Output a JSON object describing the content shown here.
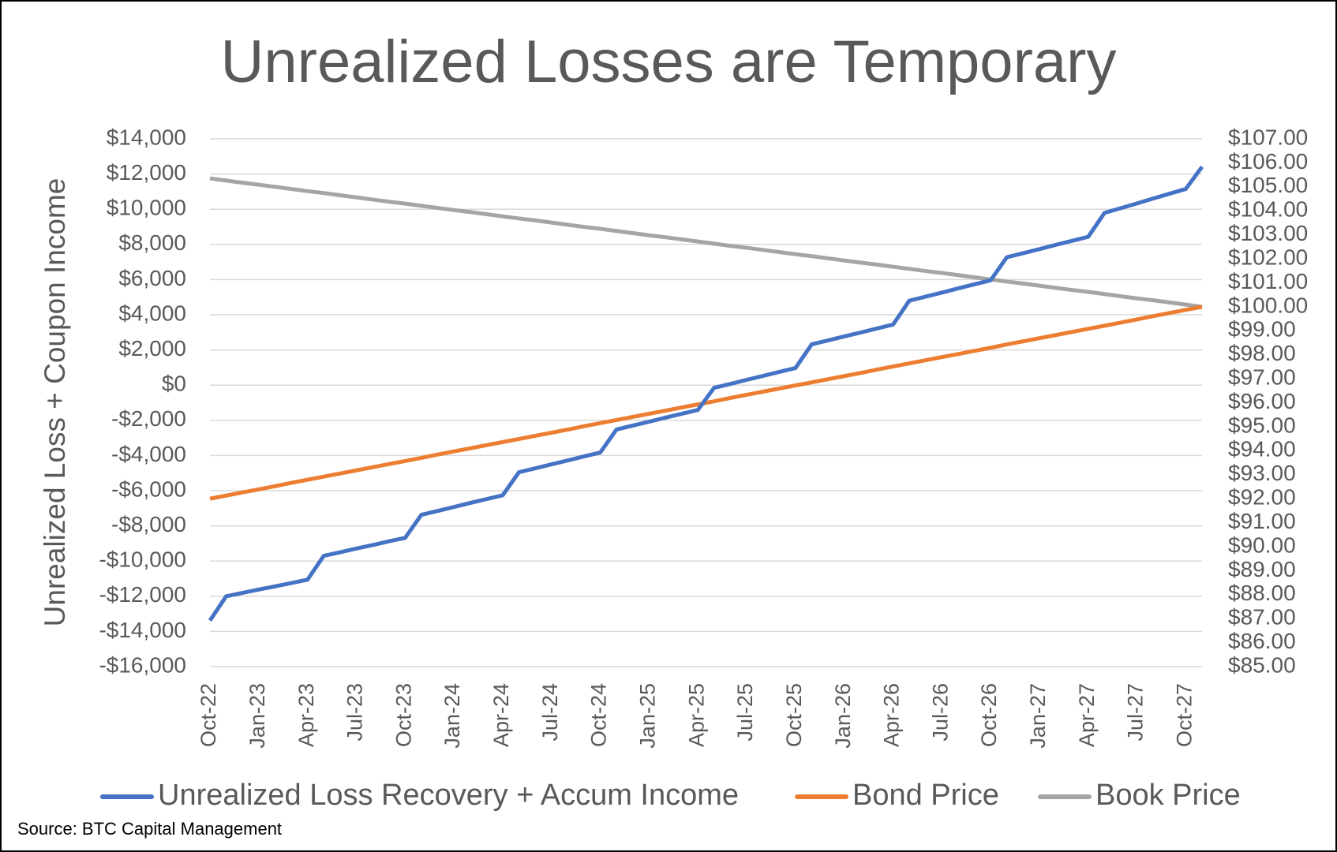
{
  "chart_data": {
    "type": "line",
    "title": "Unrealized Losses are Temporary",
    "y_label": "Unrealized Loss + Coupon Income",
    "source": "Source:  BTC Capital Management",
    "categories": [
      "Oct-22",
      null,
      null,
      "Jan-23",
      null,
      null,
      "Apr-23",
      null,
      null,
      "Jul-23",
      null,
      null,
      "Oct-23",
      null,
      null,
      "Jan-24",
      null,
      null,
      "Apr-24",
      null,
      null,
      "Jul-24",
      null,
      null,
      "Oct-24",
      null,
      null,
      "Jan-25",
      null,
      null,
      "Apr-25",
      null,
      null,
      "Jul-25",
      null,
      null,
      "Oct-25",
      null,
      null,
      "Jan-26",
      null,
      null,
      "Apr-26",
      null,
      null,
      "Jul-26",
      null,
      null,
      "Oct-26",
      null,
      null,
      "Jan-27",
      null,
      null,
      "Apr-27",
      null,
      null,
      "Jul-27",
      null,
      null,
      "Oct-27",
      null
    ],
    "ylim": [
      -16000,
      14000
    ],
    "yticks": [
      {
        "value": -16000,
        "label": "-$16,000"
      },
      {
        "value": -14000,
        "label": "-$14,000"
      },
      {
        "value": -12000,
        "label": "-$12,000"
      },
      {
        "value": -10000,
        "label": "-$10,000"
      },
      {
        "value": -8000,
        "label": "-$8,000"
      },
      {
        "value": -6000,
        "label": "-$6,000"
      },
      {
        "value": -4000,
        "label": "-$4,000"
      },
      {
        "value": -2000,
        "label": "-$2,000"
      },
      {
        "value": 0,
        "label": "$0"
      },
      {
        "value": 2000,
        "label": "$2,000"
      },
      {
        "value": 4000,
        "label": "$4,000"
      },
      {
        "value": 6000,
        "label": "$6,000"
      },
      {
        "value": 8000,
        "label": "$8,000"
      },
      {
        "value": 10000,
        "label": "$10,000"
      },
      {
        "value": 12000,
        "label": "$12,000"
      },
      {
        "value": 14000,
        "label": "$14,000"
      }
    ],
    "y2lim": [
      85,
      107
    ],
    "y2ticks": [
      {
        "value": 85,
        "label": "$85.00"
      },
      {
        "value": 86,
        "label": "$86.00"
      },
      {
        "value": 87,
        "label": "$87.00"
      },
      {
        "value": 88,
        "label": "$88.00"
      },
      {
        "value": 89,
        "label": "$89.00"
      },
      {
        "value": 90,
        "label": "$90.00"
      },
      {
        "value": 91,
        "label": "$91.00"
      },
      {
        "value": 92,
        "label": "$92.00"
      },
      {
        "value": 93,
        "label": "$93.00"
      },
      {
        "value": 94,
        "label": "$94.00"
      },
      {
        "value": 95,
        "label": "$95.00"
      },
      {
        "value": 96,
        "label": "$96.00"
      },
      {
        "value": 97,
        "label": "$97.00"
      },
      {
        "value": 98,
        "label": "$98.00"
      },
      {
        "value": 99,
        "label": "$99.00"
      },
      {
        "value": 100,
        "label": "$100.00"
      },
      {
        "value": 101,
        "label": "$101.00"
      },
      {
        "value": 102,
        "label": "$102.00"
      },
      {
        "value": 103,
        "label": "$103.00"
      },
      {
        "value": 104,
        "label": "$104.00"
      },
      {
        "value": 105,
        "label": "$105.00"
      },
      {
        "value": 106,
        "label": "$106.00"
      },
      {
        "value": 107,
        "label": "$107.00"
      }
    ],
    "grid": true,
    "legend": "bottom",
    "series": [
      {
        "name": "Unrealized Loss Recovery + Accum Income",
        "color": "#4472c4",
        "axis": "y",
        "values": [
          -13380,
          -12000,
          -11810,
          -11620,
          -11440,
          -11250,
          -11060,
          -9700,
          -9500,
          -9290,
          -9090,
          -8880,
          -8680,
          -7370,
          -7150,
          -6930,
          -6700,
          -6480,
          -6260,
          -4950,
          -4730,
          -4500,
          -4280,
          -4050,
          -3830,
          -2520,
          -2300,
          -2080,
          -1850,
          -1630,
          -1410,
          -150,
          70,
          300,
          520,
          750,
          970,
          2320,
          2540,
          2770,
          2990,
          3220,
          3440,
          4800,
          5030,
          5260,
          5500,
          5730,
          5960,
          7270,
          7500,
          7730,
          7970,
          8200,
          8430,
          9790,
          10060,
          10330,
          10610,
          10880,
          11150,
          12410
        ]
      },
      {
        "name": "Bond Price",
        "color": "#ed7d31",
        "axis": "y2",
        "values": [
          92.0,
          92.13,
          92.26,
          92.39,
          92.52,
          92.66,
          92.79,
          92.92,
          93.05,
          93.18,
          93.31,
          93.44,
          93.57,
          93.7,
          93.84,
          93.97,
          94.1,
          94.23,
          94.36,
          94.49,
          94.62,
          94.75,
          94.88,
          95.02,
          95.15,
          95.28,
          95.41,
          95.54,
          95.67,
          95.8,
          95.93,
          96.06,
          96.2,
          96.33,
          96.46,
          96.59,
          96.72,
          96.85,
          96.98,
          97.11,
          97.24,
          97.38,
          97.51,
          97.64,
          97.77,
          97.9,
          98.03,
          98.16,
          98.29,
          98.43,
          98.56,
          98.69,
          98.82,
          98.95,
          99.08,
          99.21,
          99.34,
          99.47,
          99.61,
          99.74,
          99.87,
          100.0
        ]
      },
      {
        "name": "Book Price",
        "color": "#a5a5a5",
        "axis": "y2",
        "values": [
          105.35,
          105.26,
          105.17,
          105.09,
          105.0,
          104.91,
          104.82,
          104.74,
          104.65,
          104.56,
          104.47,
          104.38,
          104.3,
          104.21,
          104.12,
          104.03,
          103.95,
          103.86,
          103.77,
          103.68,
          103.6,
          103.51,
          103.42,
          103.33,
          103.25,
          103.16,
          103.07,
          102.98,
          102.9,
          102.81,
          102.72,
          102.63,
          102.54,
          102.46,
          102.37,
          102.28,
          102.19,
          102.11,
          102.02,
          101.93,
          101.84,
          101.76,
          101.67,
          101.58,
          101.49,
          101.41,
          101.32,
          101.23,
          101.14,
          101.05,
          100.97,
          100.88,
          100.79,
          100.7,
          100.62,
          100.53,
          100.44,
          100.35,
          100.27,
          100.18,
          100.09,
          100.0
        ]
      }
    ]
  }
}
